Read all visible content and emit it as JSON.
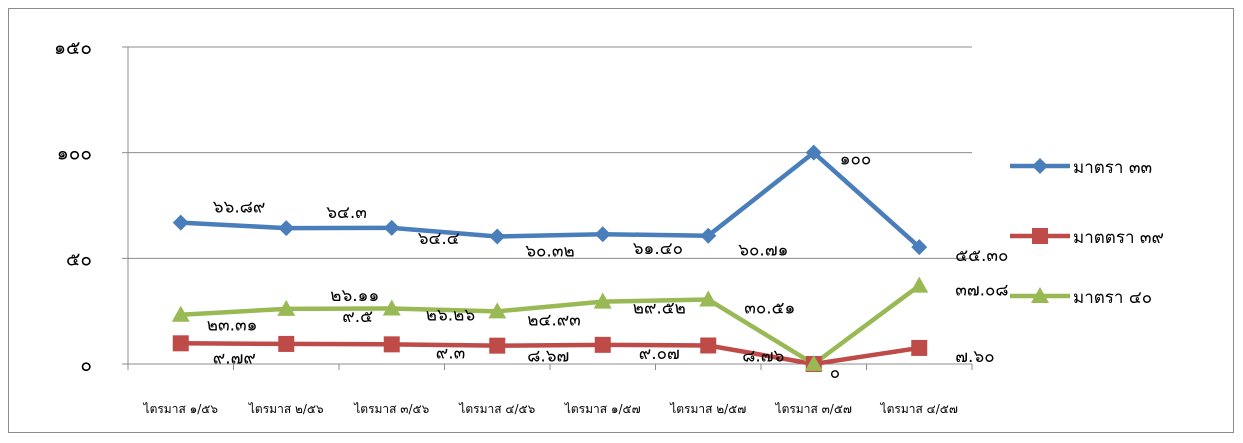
{
  "chart_data": {
    "type": "line",
    "title": "",
    "xlabel": "",
    "ylabel": "",
    "ylim": [
      0,
      150
    ],
    "yticks": [
      "๐",
      "๕๐",
      "๑๐๐",
      "๑๕๐"
    ],
    "grid": true,
    "legend_position": "right",
    "categories": [
      "ไตรมาส ๑/๕๖",
      "ไตรมาส ๒/๕๖",
      "ไตรมาส ๓/๕๖",
      "ไตรมาส ๔/๕๖",
      "ไตรมาส ๑/๕๗",
      "ไตรมาส ๒/๕๗",
      "ไตรมาส ๓/๕๗",
      "ไตรมาส ๔/๕๗"
    ],
    "series": [
      {
        "name": "มาตรา ๓๓",
        "color": "#4a7ebb",
        "marker": "diamond",
        "values": [
          66.89,
          64.3,
          64.4,
          60.32,
          61.4,
          60.71,
          100,
          55.3
        ],
        "labels": [
          "๖๖.๘๙",
          "๖๔.๓",
          "๖๔.๔",
          "๖๐.๓๒",
          "๖๑.๔๐",
          "๖๐.๗๑",
          "๑๐๐",
          "๕๕.๓๐"
        ]
      },
      {
        "name": "มาตตรา ๓๙",
        "color": "#be4b48",
        "marker": "square",
        "values": [
          9.79,
          9.5,
          9.3,
          8.67,
          9.07,
          8.76,
          0,
          7.6
        ],
        "labels": [
          "๙.๗๙",
          "๙.๕",
          "๙.๓",
          "๘.๖๗",
          "๙.๐๗",
          "๘.๗๖",
          "๐",
          "๗.๖๐"
        ]
      },
      {
        "name": "มาตรา ๔๐",
        "color": "#98b954",
        "marker": "triangle",
        "values": [
          23.31,
          26.11,
          26.26,
          24.93,
          29.52,
          30.51,
          0,
          37.08
        ],
        "labels": [
          "๒๓.๓๑",
          "๒๖.๑๑",
          "๒๖.๒๖",
          "๒๔.๙๓",
          "๒๙.๕๒",
          "๓๐.๕๑",
          "",
          "๓๗.๐๘"
        ]
      }
    ]
  }
}
